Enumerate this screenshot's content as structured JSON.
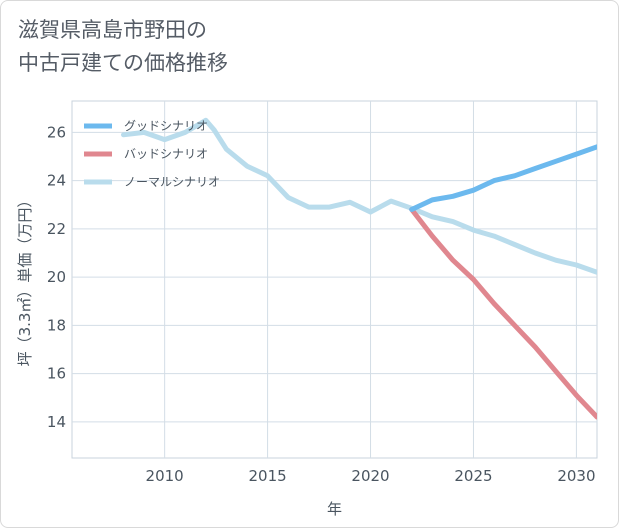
{
  "title": {
    "line1": "滋賀県高島市野田の",
    "line2": "中古戸建ての価格推移"
  },
  "chart_data": {
    "type": "line",
    "xlabel": "年",
    "ylabel": "坪（3.3㎡）単価（万円）",
    "xlim": [
      2005.5,
      2031
    ],
    "ylim": [
      12.5,
      27.3
    ],
    "x_ticks": [
      2010,
      2015,
      2020,
      2025,
      2030
    ],
    "y_ticks": [
      14,
      16,
      18,
      20,
      22,
      24,
      26
    ],
    "grid": true,
    "legend_position": "top-left",
    "series": [
      {
        "name": "グッドシナリオ",
        "color": "#6cb9ee",
        "x": [
          2022,
          2023,
          2024,
          2025,
          2026,
          2027,
          2028,
          2029,
          2030,
          2031
        ],
        "y": [
          22.8,
          23.2,
          23.35,
          23.6,
          24.0,
          24.2,
          24.5,
          24.8,
          25.1,
          25.4
        ]
      },
      {
        "name": "バッドシナリオ",
        "color": "#e0878f",
        "x": [
          2022,
          2023,
          2024,
          2025,
          2026,
          2027,
          2028,
          2029,
          2030,
          2031
        ],
        "y": [
          22.8,
          21.7,
          20.7,
          19.9,
          18.9,
          18.0,
          17.1,
          16.1,
          15.1,
          14.2
        ]
      },
      {
        "name": "ノーマルシナリオ",
        "color": "#b9dcec",
        "x": [
          2008,
          2009,
          2010,
          2011,
          2012,
          2012.4,
          2013,
          2014,
          2015,
          2016,
          2017,
          2018,
          2019,
          2020,
          2021,
          2022,
          2023,
          2024,
          2025,
          2026,
          2027,
          2028,
          2029,
          2030,
          2031
        ],
        "y": [
          25.9,
          26.0,
          25.7,
          26.0,
          26.5,
          26.1,
          25.3,
          24.6,
          24.2,
          23.3,
          22.9,
          22.9,
          23.1,
          22.7,
          23.15,
          22.85,
          22.5,
          22.3,
          21.95,
          21.7,
          21.35,
          21.0,
          20.7,
          20.5,
          20.2
        ]
      }
    ]
  }
}
